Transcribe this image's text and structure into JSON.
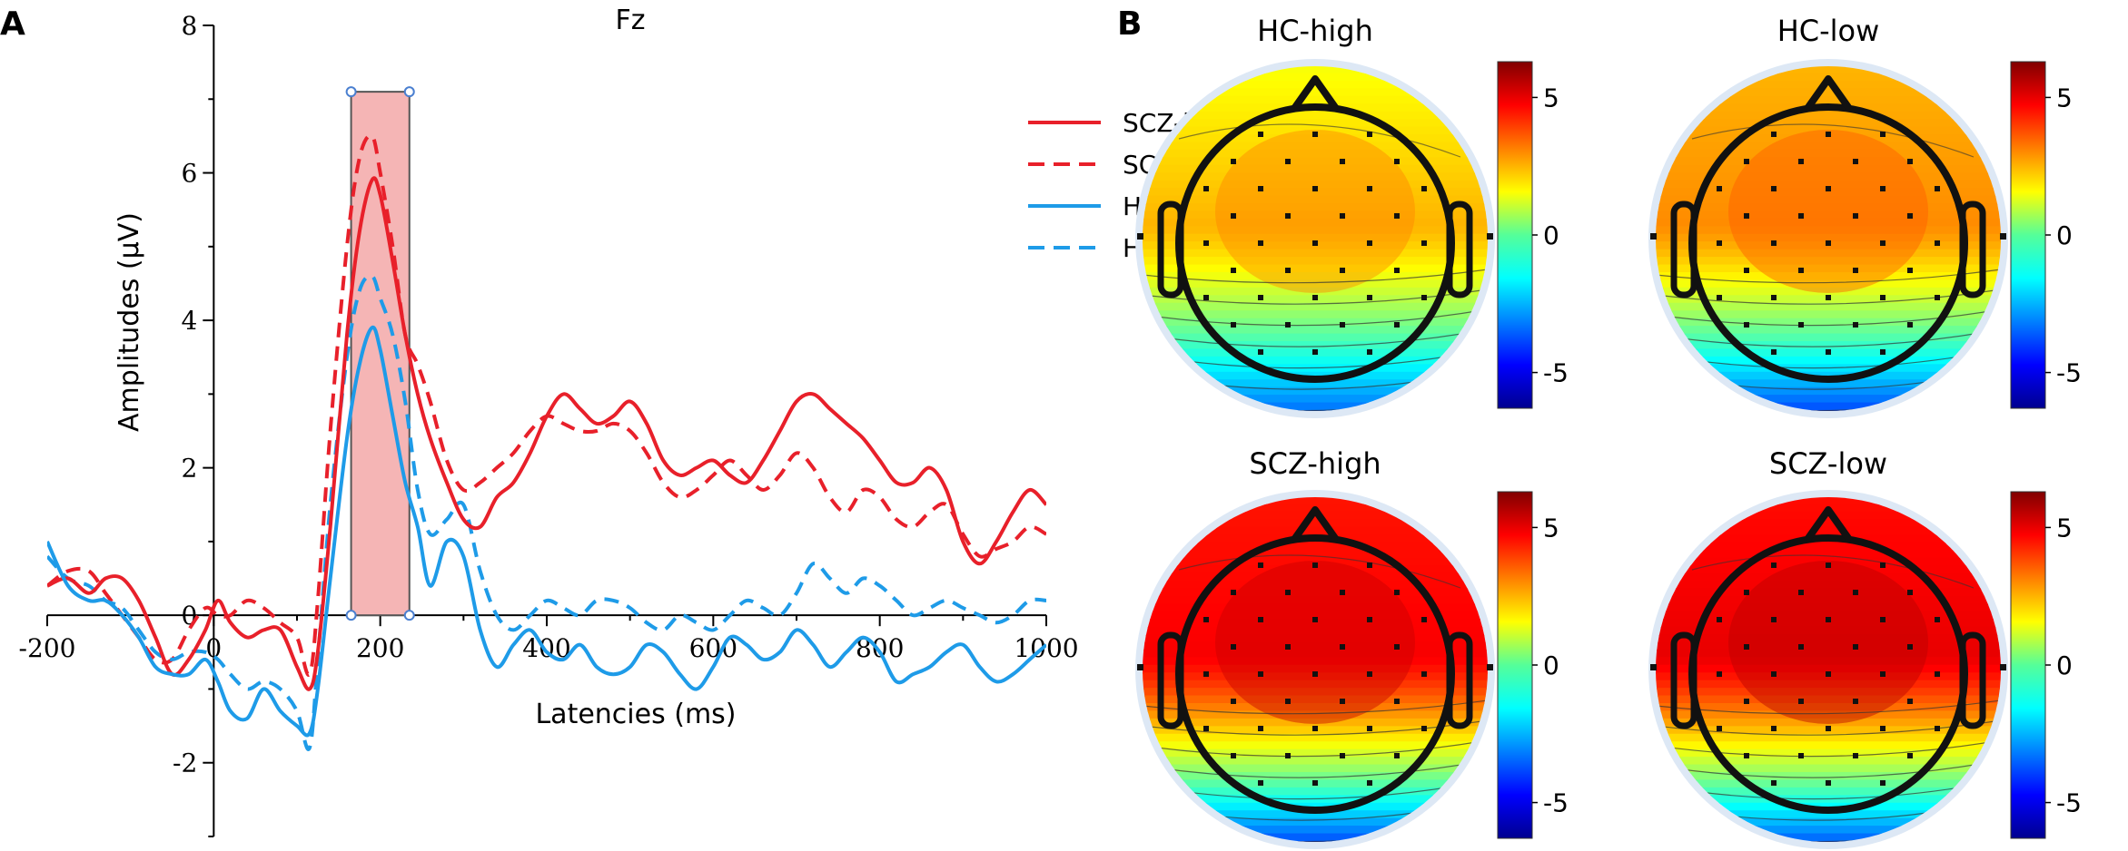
{
  "panel_a_letter": "A",
  "panel_b_letter": "B",
  "chart_data": [
    {
      "type": "line",
      "title": "Fz",
      "xlabel": "Latencies (ms)",
      "ylabel": "Amplitudes (μV)",
      "xlim": [
        -200,
        1000
      ],
      "ylim": [
        -3,
        8
      ],
      "xticks": [
        -200,
        0,
        200,
        400,
        600,
        800,
        1000
      ],
      "yticks": [
        -2,
        0,
        2,
        4,
        6,
        8
      ],
      "xtick_labels": [
        "-200",
        "0",
        "200",
        "400",
        "600",
        "800",
        "1000"
      ],
      "ytick_labels": [
        "-2",
        "0",
        "2",
        "4",
        "6",
        "8"
      ],
      "highlight_window": {
        "x": [
          165,
          235
        ],
        "y": [
          0,
          7.1
        ],
        "color": "#f5b5b5"
      },
      "legend_position": "top-right",
      "grid": false,
      "series": [
        {
          "name": "SCZ-high",
          "color": "#e8202a",
          "dash": false,
          "x": [
            -200,
            -175,
            -150,
            -130,
            -110,
            -90,
            -70,
            -50,
            -30,
            -10,
            5,
            20,
            40,
            60,
            80,
            100,
            115,
            125,
            140,
            160,
            175,
            190,
            200,
            215,
            230,
            245,
            260,
            280,
            300,
            320,
            340,
            360,
            380,
            400,
            420,
            440,
            460,
            480,
            500,
            520,
            540,
            560,
            580,
            600,
            620,
            640,
            660,
            680,
            700,
            720,
            740,
            760,
            780,
            800,
            820,
            840,
            860,
            880,
            900,
            920,
            940,
            960,
            980,
            1000
          ],
          "y": [
            0.4,
            0.5,
            0.3,
            0.5,
            0.5,
            0.2,
            -0.3,
            -0.8,
            -0.6,
            -0.2,
            0.2,
            -0.1,
            -0.3,
            -0.2,
            -0.2,
            -0.7,
            -1.0,
            -0.5,
            1.2,
            3.8,
            5.2,
            5.9,
            5.7,
            4.8,
            3.8,
            3.0,
            2.4,
            1.8,
            1.3,
            1.2,
            1.6,
            1.8,
            2.2,
            2.7,
            3.0,
            2.8,
            2.6,
            2.7,
            2.9,
            2.6,
            2.1,
            1.9,
            2.0,
            2.1,
            1.9,
            1.8,
            2.1,
            2.5,
            2.9,
            3.0,
            2.8,
            2.6,
            2.4,
            2.1,
            1.8,
            1.8,
            2.0,
            1.7,
            1.0,
            0.7,
            1.0,
            1.4,
            1.7,
            1.5
          ]
        },
        {
          "name": "SCZ-low",
          "color": "#e8202a",
          "dash": true,
          "x": [
            -200,
            -175,
            -150,
            -130,
            -110,
            -90,
            -70,
            -50,
            -30,
            -10,
            5,
            20,
            40,
            60,
            80,
            100,
            115,
            125,
            140,
            160,
            175,
            190,
            200,
            215,
            230,
            245,
            260,
            280,
            300,
            320,
            340,
            360,
            380,
            400,
            420,
            440,
            460,
            480,
            500,
            520,
            540,
            560,
            580,
            600,
            620,
            640,
            660,
            680,
            700,
            720,
            740,
            760,
            780,
            800,
            820,
            840,
            860,
            880,
            900,
            920,
            940,
            960,
            980,
            1000
          ],
          "y": [
            0.4,
            0.6,
            0.6,
            0.3,
            0.0,
            -0.3,
            -0.6,
            -0.6,
            -0.2,
            0.1,
            0.0,
            0.0,
            0.2,
            0.1,
            -0.1,
            -0.3,
            -0.8,
            0.2,
            2.5,
            5.0,
            6.2,
            6.5,
            6.0,
            5.0,
            3.8,
            3.4,
            2.9,
            2.1,
            1.7,
            1.8,
            2.0,
            2.2,
            2.5,
            2.7,
            2.6,
            2.5,
            2.5,
            2.6,
            2.5,
            2.2,
            1.8,
            1.6,
            1.7,
            1.9,
            2.1,
            1.9,
            1.7,
            1.9,
            2.2,
            2.0,
            1.6,
            1.4,
            1.7,
            1.6,
            1.3,
            1.2,
            1.4,
            1.5,
            1.1,
            0.8,
            0.9,
            1.0,
            1.2,
            1.1
          ]
        },
        {
          "name": "HC-high",
          "color": "#1e9be8",
          "dash": false,
          "x": [
            -200,
            -175,
            -150,
            -130,
            -110,
            -90,
            -70,
            -50,
            -30,
            -10,
            5,
            20,
            40,
            60,
            80,
            100,
            115,
            125,
            140,
            160,
            175,
            190,
            200,
            215,
            230,
            245,
            260,
            280,
            300,
            320,
            340,
            360,
            380,
            400,
            420,
            440,
            460,
            480,
            500,
            520,
            540,
            560,
            580,
            600,
            620,
            640,
            660,
            680,
            700,
            720,
            740,
            760,
            780,
            800,
            820,
            840,
            860,
            880,
            900,
            920,
            940,
            960,
            980,
            1000
          ],
          "y": [
            1.0,
            0.4,
            0.2,
            0.2,
            0.0,
            -0.3,
            -0.7,
            -0.8,
            -0.8,
            -0.6,
            -0.9,
            -1.3,
            -1.4,
            -1.0,
            -1.3,
            -1.5,
            -1.6,
            -1.0,
            0.5,
            2.4,
            3.4,
            3.9,
            3.6,
            2.7,
            1.8,
            1.2,
            0.4,
            1.0,
            0.8,
            -0.2,
            -0.7,
            -0.4,
            -0.2,
            -0.5,
            -0.6,
            -0.4,
            -0.7,
            -0.8,
            -0.7,
            -0.4,
            -0.5,
            -0.8,
            -1.0,
            -0.7,
            -0.3,
            -0.4,
            -0.6,
            -0.5,
            -0.2,
            -0.4,
            -0.7,
            -0.5,
            -0.3,
            -0.5,
            -0.9,
            -0.8,
            -0.7,
            -0.5,
            -0.4,
            -0.7,
            -0.9,
            -0.8,
            -0.6,
            -0.4
          ]
        },
        {
          "name": "HC-low",
          "color": "#1e9be8",
          "dash": true,
          "x": [
            -200,
            -175,
            -150,
            -130,
            -110,
            -90,
            -70,
            -50,
            -30,
            -10,
            5,
            20,
            40,
            60,
            80,
            100,
            115,
            125,
            140,
            160,
            175,
            190,
            200,
            215,
            230,
            245,
            260,
            280,
            300,
            320,
            340,
            360,
            380,
            400,
            420,
            440,
            460,
            480,
            500,
            520,
            540,
            560,
            580,
            600,
            620,
            640,
            660,
            680,
            700,
            720,
            740,
            760,
            780,
            800,
            820,
            840,
            860,
            880,
            900,
            920,
            940,
            960,
            980,
            1000
          ],
          "y": [
            0.8,
            0.5,
            0.4,
            0.2,
            0.1,
            -0.2,
            -0.5,
            -0.6,
            -0.5,
            -0.5,
            -0.6,
            -0.8,
            -1.0,
            -0.9,
            -1.0,
            -1.3,
            -1.8,
            -0.6,
            1.5,
            3.5,
            4.4,
            4.6,
            4.3,
            3.8,
            2.9,
            1.7,
            1.1,
            1.3,
            1.5,
            0.6,
            0.0,
            -0.2,
            0.0,
            0.2,
            0.1,
            0.0,
            0.2,
            0.2,
            0.1,
            -0.1,
            -0.2,
            0.0,
            -0.1,
            -0.2,
            0.0,
            0.2,
            0.1,
            0.0,
            0.3,
            0.7,
            0.5,
            0.3,
            0.5,
            0.4,
            0.2,
            0.0,
            0.1,
            0.2,
            0.1,
            0.0,
            -0.1,
            0.0,
            0.2,
            0.2
          ]
        }
      ]
    },
    {
      "type": "heatmap",
      "description_note": "topographic maps",
      "maps": [
        {
          "title": "HC-high",
          "center_value": 2.5,
          "front_value": 1.5,
          "back_value": -3.5
        },
        {
          "title": "HC-low",
          "center_value": 3.0,
          "front_value": 2.5,
          "back_value": -4.0
        },
        {
          "title": "SCZ-high",
          "center_value": 4.8,
          "front_value": 4.5,
          "back_value": -4.0
        },
        {
          "title": "SCZ-low",
          "center_value": 5.0,
          "front_value": 4.6,
          "back_value": -3.8
        }
      ],
      "colorbar": {
        "min": -6.3,
        "max": 6.3,
        "ticks": [
          5,
          0,
          -5
        ],
        "tick_labels": [
          "5",
          "0",
          "-5"
        ],
        "colormap": "jet"
      }
    }
  ]
}
